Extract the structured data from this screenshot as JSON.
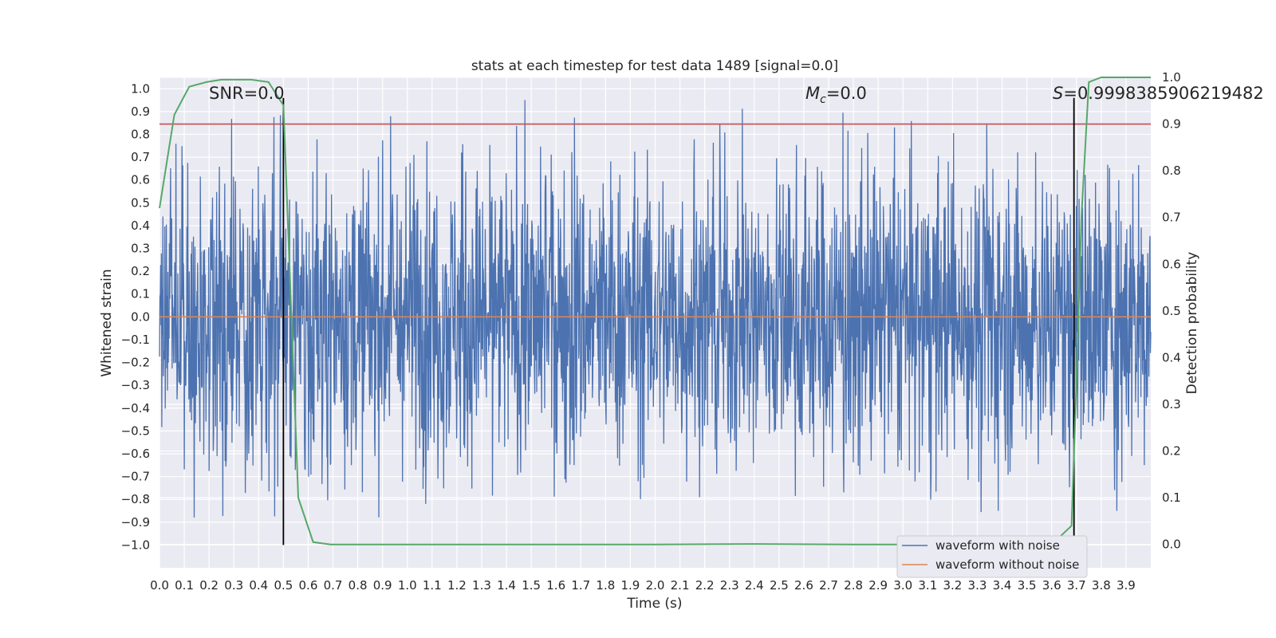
{
  "chart_data": {
    "type": "line",
    "title": "stats at each timestep for test data 1489 [signal=0.0]",
    "xlabel": "Time (s)",
    "ylabel": "Whitened strain",
    "y2label": "Detection probability",
    "xlim": [
      0.0,
      4.0
    ],
    "ylim": [
      -1.1,
      1.05
    ],
    "y2lim": [
      -0.05,
      1.0
    ],
    "xticks": [
      "0.0",
      "0.1",
      "0.2",
      "0.3",
      "0.4",
      "0.5",
      "0.6",
      "0.7",
      "0.8",
      "0.9",
      "1.0",
      "1.1",
      "1.2",
      "1.3",
      "1.4",
      "1.5",
      "1.6",
      "1.7",
      "1.8",
      "1.9",
      "2.0",
      "2.1",
      "2.2",
      "2.3",
      "2.4",
      "2.5",
      "2.6",
      "2.7",
      "2.8",
      "2.9",
      "3.0",
      "3.1",
      "3.2",
      "3.3",
      "3.4",
      "3.5",
      "3.6",
      "3.7",
      "3.8",
      "3.9"
    ],
    "yticks": [
      "1.0",
      "0.9",
      "0.8",
      "0.7",
      "0.6",
      "0.5",
      "0.4",
      "0.3",
      "0.2",
      "0.1",
      "0.0",
      "-0.1",
      "-0.2",
      "-0.3",
      "-0.4",
      "-0.5",
      "-0.6",
      "-0.7",
      "-0.8",
      "-0.9",
      "-1.0"
    ],
    "y2ticks": [
      "1.0",
      "0.9",
      "0.8",
      "0.7",
      "0.6",
      "0.5",
      "0.4",
      "0.3",
      "0.2",
      "0.1",
      "0.0"
    ],
    "grid": true,
    "legend_position": "lower-right",
    "series": [
      {
        "name": "waveform with noise",
        "color": "#4c72b0",
        "axis": "left",
        "description_type": "noise",
        "amplitude_range": [
          -1.0,
          0.96
        ]
      },
      {
        "name": "waveform without noise",
        "color": "#dd8452",
        "axis": "left",
        "constant": 0.0
      },
      {
        "color": "#55a868",
        "axis": "right",
        "x": [
          0.0,
          0.06,
          0.12,
          0.19,
          0.25,
          0.31,
          0.37,
          0.44,
          0.5,
          0.56,
          0.62,
          0.69,
          0.75,
          1.0,
          1.5,
          2.0,
          2.4,
          2.8,
          3.0,
          3.4,
          3.6,
          3.68,
          3.7,
          3.72,
          3.75,
          3.8,
          3.9,
          4.0
        ],
        "y": [
          0.72,
          0.92,
          0.98,
          0.99,
          0.995,
          0.995,
          0.995,
          0.99,
          0.94,
          0.1,
          0.005,
          0.0,
          0.0,
          0.0,
          0.0,
          0.0,
          0.001,
          0.0,
          0.0,
          0.0,
          0.0,
          0.04,
          0.35,
          0.7,
          0.99,
          1.0,
          1.0,
          1.0
        ]
      }
    ],
    "hlines": [
      {
        "axis": "right",
        "y": 0.9,
        "color": "#c44e52"
      }
    ],
    "vlines": [
      {
        "x": 0.5,
        "color": "#000000"
      },
      {
        "x": 3.69,
        "color": "#000000"
      }
    ],
    "annotations": {
      "snr": "SNR=0.0",
      "mc_symbol": "M",
      "mc_sub": "c",
      "mc_value": "=0.0",
      "s_symbol": "S",
      "s_value": "=0.9998385906219482"
    }
  }
}
